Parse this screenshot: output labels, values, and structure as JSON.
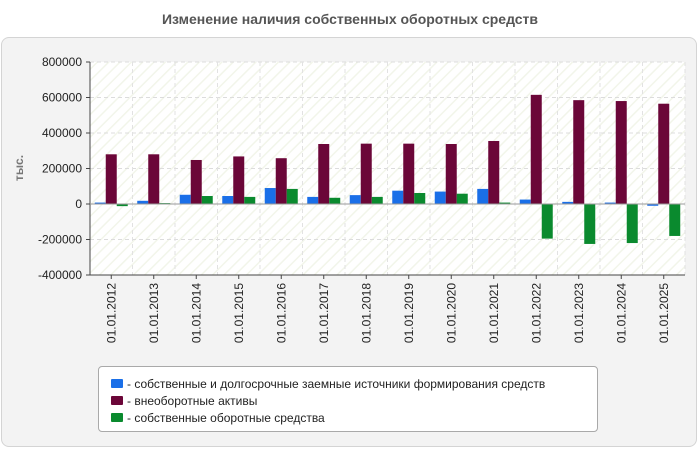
{
  "chart_data": {
    "type": "bar",
    "title": "Изменение наличия собственных оборотных средств",
    "xlabel": "",
    "ylabel": "тыс.",
    "ylim": [
      -400000,
      800000
    ],
    "yticks": [
      800000,
      600000,
      400000,
      200000,
      0,
      -200000,
      -400000
    ],
    "ytick_labels": [
      "800000",
      "600000",
      "400000",
      "200000",
      "0",
      "-200000",
      "-400000"
    ],
    "categories": [
      "01.01.2012",
      "01.01.2013",
      "01.01.2014",
      "01.01.2015",
      "01.01.2016",
      "01.01.2017",
      "01.01.2018",
      "01.01.2019",
      "01.01.2020",
      "01.01.2021",
      "01.01.2022",
      "01.01.2023",
      "01.01.2024",
      "01.01.2025"
    ],
    "series": [
      {
        "name": "собственные и долгосрочные заемные источники формирования средств",
        "color": "#1a6fe8",
        "values": [
          8000,
          18000,
          52000,
          45000,
          90000,
          40000,
          50000,
          75000,
          70000,
          85000,
          25000,
          12000,
          8000,
          -10000
        ]
      },
      {
        "name": "внеоборотные активы",
        "color": "#6b0638",
        "values": [
          280000,
          280000,
          248000,
          268000,
          258000,
          338000,
          340000,
          340000,
          338000,
          355000,
          615000,
          585000,
          580000,
          565000
        ]
      },
      {
        "name": "собственные оборотные средства",
        "color": "#0a8a2e",
        "values": [
          -12000,
          5000,
          45000,
          40000,
          85000,
          35000,
          40000,
          62000,
          58000,
          8000,
          -195000,
          -225000,
          -220000,
          -180000
        ]
      }
    ],
    "legend_position": "bottom",
    "grid": true
  },
  "legend": {
    "items": [
      {
        "label": "- собственные и долгосрочные заемные источники формирования средств",
        "color": "#1a6fe8"
      },
      {
        "label": "- внеоборотные активы",
        "color": "#6b0638"
      },
      {
        "label": "- собственные оборотные средства",
        "color": "#0a8a2e"
      }
    ]
  }
}
